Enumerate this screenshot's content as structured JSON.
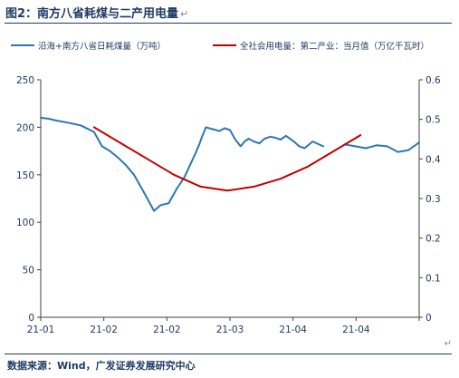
{
  "figure": {
    "title": "图2：南方八省耗煤与二产用电量",
    "return_mark": "↵",
    "source": "数据来源：Wind，广发证券发展研究中心",
    "corner_mark": "↵"
  },
  "chart_data": {
    "type": "line",
    "legend_position": "top",
    "grid": false,
    "x_ticks": [
      "21-01",
      "21-02",
      "21-02",
      "21-03",
      "21-04",
      "21-04"
    ],
    "y_left": {
      "ylim": [
        0,
        250
      ],
      "ticks": [
        "0",
        "50",
        "100",
        "150",
        "200",
        "250"
      ]
    },
    "y_right": {
      "ylim": [
        0,
        0.6
      ],
      "ticks": [
        "0",
        "0.1",
        "0.2",
        "0.3",
        "0.4",
        "0.5",
        "0.6"
      ]
    },
    "series": [
      {
        "name": "沿海+南方八省日耗煤量（万吨）",
        "axis": "left",
        "color": "#2e75b6",
        "x": [
          0,
          0.3,
          0.6,
          1.0,
          1.5,
          2.0,
          2.3,
          2.6,
          2.9,
          3.2,
          3.5,
          3.7,
          3.8,
          4.0,
          4.25,
          4.5,
          4.8,
          5.1,
          5.4,
          5.6,
          5.8,
          5.95,
          6.05,
          6.2,
          6.45,
          6.7,
          6.9,
          7.1,
          7.3,
          7.5,
          7.65,
          7.8,
          8.0,
          8.2,
          8.4,
          8.6,
          8.8,
          9.0,
          9.2,
          9.4,
          9.5,
          9.7,
          9.9,
          10.2,
          10.6,
          11.0,
          11.4,
          11.8,
          12.2,
          12.6,
          13.0,
          13.4,
          13.8,
          14.2
        ],
        "y": [
          210,
          209,
          207,
          205,
          202,
          195,
          180,
          175,
          168,
          160,
          150,
          140,
          135,
          125,
          112,
          118,
          120,
          135,
          148,
          160,
          172,
          182,
          190,
          200,
          198,
          196,
          199,
          197,
          187,
          180,
          185,
          188,
          185,
          183,
          188,
          190,
          189,
          187,
          191,
          187,
          185,
          180,
          178,
          185,
          180,
          null,
          182,
          180,
          178,
          181,
          180,
          174,
          176,
          184
        ],
        "gaps": [
          10.6,
          11.4
        ]
      },
      {
        "name": "全社会用电量：第二产业：当月值（万亿千瓦时）",
        "axis": "right",
        "color": "#c00000",
        "x": [
          2.0,
          3.0,
          4.0,
          5.0,
          6.0,
          7.0,
          8.0,
          9.0,
          10.0,
          11.0,
          12.0
        ],
        "y": [
          0.48,
          0.44,
          0.4,
          0.36,
          0.33,
          0.32,
          0.33,
          0.35,
          0.38,
          0.42,
          0.46
        ]
      }
    ]
  }
}
